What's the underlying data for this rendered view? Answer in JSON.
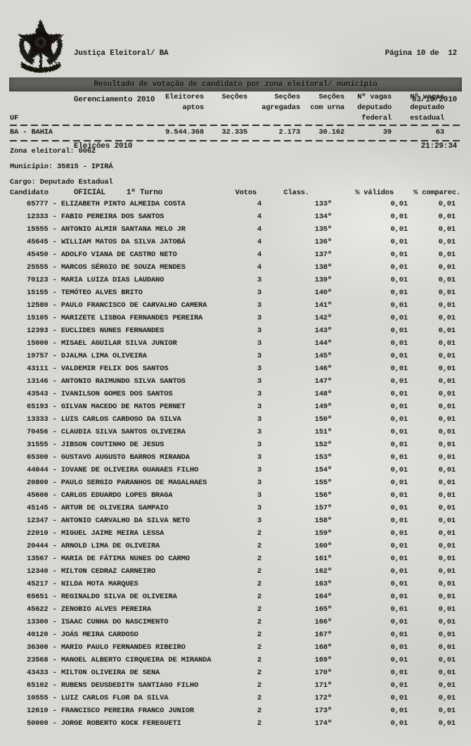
{
  "header": {
    "org": "Justiça Eleitoral/ BA",
    "system": "Gerenciamento 2010",
    "election": "Eleições 2010",
    "doc_type": "OFICIAL",
    "turn": "1º Turno",
    "page": "Página 10 de  12",
    "date": "03/10/2010",
    "time": "21:29:34"
  },
  "icons": {
    "logo": "brazil-coat-of-arms"
  },
  "title_bar": {
    "title": "Resultado de votação de candidato por zona eleitoral/ município"
  },
  "summary": {
    "columns": {
      "uf": "UF",
      "eleitores": "Eleitores\naptos",
      "secoes": "Seções",
      "agregadas": "Seções\nagregadas",
      "com_urna": "Seções\ncom urna",
      "federal": "Nº vagas\ndeputado\nfederal",
      "estadual": "Nº vagas\ndeputado\nestadual"
    },
    "row": {
      "uf": "BA - BAHIA",
      "eleitores_aptos": "9.544.368",
      "secoes": "32.335",
      "secoes_agregadas": "2.173",
      "secoes_com_urna": "30.162",
      "vagas_federal": "39",
      "vagas_estadual": "63"
    }
  },
  "section": {
    "zona_label": "Zona eleitoral:",
    "zona_value": "0062",
    "municipio_label": "Município:",
    "municipio_value": "35815 - IPIRÁ",
    "cargo_label": "Cargo:",
    "cargo_value": "Deputado Estadual"
  },
  "table": {
    "separator": " - ",
    "headers": {
      "candidato": "Candidato",
      "votos": "Votos",
      "class": "Class.",
      "validos": "% válidos",
      "comparec": "% comparec."
    },
    "rows": [
      {
        "num": "65777",
        "name": "ELIZABETH PINTO ALMEIDA COSTA",
        "votes": "4",
        "rank": "133º",
        "valid": "0,01",
        "comp": "0,01"
      },
      {
        "num": "12333",
        "name": "FABIO PEREIRA DOS SANTOS",
        "votes": "4",
        "rank": "134º",
        "valid": "0,01",
        "comp": "0,01"
      },
      {
        "num": "15555",
        "name": "ANTONIO ALMIR SANTANA MELO JR",
        "votes": "4",
        "rank": "135º",
        "valid": "0,01",
        "comp": "0,01"
      },
      {
        "num": "45645",
        "name": "WILLIAM MATOS DA SILVA JATOBÁ",
        "votes": "4",
        "rank": "136º",
        "valid": "0,01",
        "comp": "0,01"
      },
      {
        "num": "45450",
        "name": "ADOLFO VIANA DE CASTRO NETO",
        "votes": "4",
        "rank": "137º",
        "valid": "0,01",
        "comp": "0,01"
      },
      {
        "num": "25555",
        "name": "MARCOS SÉRGIO DE SOUZA MENDES",
        "votes": "4",
        "rank": "138º",
        "valid": "0,01",
        "comp": "0,01"
      },
      {
        "num": "70123",
        "name": "MARIA LUIZA DIAS LAUDANO",
        "votes": "3",
        "rank": "139º",
        "valid": "0,01",
        "comp": "0,01"
      },
      {
        "num": "15155",
        "name": "TEMÓTEO ALVES BRITO",
        "votes": "3",
        "rank": "140º",
        "valid": "0,01",
        "comp": "0,01"
      },
      {
        "num": "12580",
        "name": "PAULO FRANCISCO DE CARVALHO CAMERA",
        "votes": "3",
        "rank": "141º",
        "valid": "0,01",
        "comp": "0,01"
      },
      {
        "num": "15105",
        "name": "MARIZETE LISBOA FERNANDES PEREIRA",
        "votes": "3",
        "rank": "142º",
        "valid": "0,01",
        "comp": "0,01"
      },
      {
        "num": "12393",
        "name": "EUCLIDES NUNES FERNANDES",
        "votes": "3",
        "rank": "143º",
        "valid": "0,01",
        "comp": "0,01"
      },
      {
        "num": "15000",
        "name": "MISAEL AGUILAR SILVA JUNIOR",
        "votes": "3",
        "rank": "144º",
        "valid": "0,01",
        "comp": "0,01"
      },
      {
        "num": "19757",
        "name": "DJALMA LIMA OLIVEIRA",
        "votes": "3",
        "rank": "145º",
        "valid": "0,01",
        "comp": "0,01"
      },
      {
        "num": "43111",
        "name": "VALDEMIR FELIX DOS SANTOS",
        "votes": "3",
        "rank": "146º",
        "valid": "0,01",
        "comp": "0,01"
      },
      {
        "num": "13146",
        "name": "ANTONIO RAIMUNDO SILVA SANTOS",
        "votes": "3",
        "rank": "147º",
        "valid": "0,01",
        "comp": "0,01"
      },
      {
        "num": "43543",
        "name": "IVANILSON GOMES DOS SANTOS",
        "votes": "3",
        "rank": "148º",
        "valid": "0,01",
        "comp": "0,01"
      },
      {
        "num": "65193",
        "name": "GILVAN MACEDO DE MATOS PERNET",
        "votes": "3",
        "rank": "149º",
        "valid": "0,01",
        "comp": "0,01"
      },
      {
        "num": "13333",
        "name": "LUIS CARLOS CARDOSO DA SILVA",
        "votes": "3",
        "rank": "150º",
        "valid": "0,01",
        "comp": "0,01"
      },
      {
        "num": "70456",
        "name": "CLAUDIA SILVA SANTOS OLIVEIRA",
        "votes": "3",
        "rank": "151º",
        "valid": "0,01",
        "comp": "0,01"
      },
      {
        "num": "31555",
        "name": "JIBSON COUTINHO DE JESUS",
        "votes": "3",
        "rank": "152º",
        "valid": "0,01",
        "comp": "0,01"
      },
      {
        "num": "65300",
        "name": "GUSTAVO AUGUSTO BARROS MIRANDA",
        "votes": "3",
        "rank": "153º",
        "valid": "0,01",
        "comp": "0,01"
      },
      {
        "num": "44044",
        "name": "IOVANE DE OLIVEIRA GUANAES FILHO",
        "votes": "3",
        "rank": "154º",
        "valid": "0,01",
        "comp": "0,01"
      },
      {
        "num": "20800",
        "name": "PAULO SERGIO PARANHOS DE MAGALHAES",
        "votes": "3",
        "rank": "155º",
        "valid": "0,01",
        "comp": "0,01"
      },
      {
        "num": "45600",
        "name": "CARLOS EDUARDO LOPES BRAGA",
        "votes": "3",
        "rank": "156º",
        "valid": "0,01",
        "comp": "0,01"
      },
      {
        "num": "45145",
        "name": "ARTUR DE OLIVEIRA SAMPAIO",
        "votes": "3",
        "rank": "157º",
        "valid": "0,01",
        "comp": "0,01"
      },
      {
        "num": "12347",
        "name": "ANTONIO CARVALHO DA SILVA NETO",
        "votes": "3",
        "rank": "158º",
        "valid": "0,01",
        "comp": "0,01"
      },
      {
        "num": "22010",
        "name": "MIGUEL JAIME MEIRA LESSA",
        "votes": "2",
        "rank": "159º",
        "valid": "0,01",
        "comp": "0,01"
      },
      {
        "num": "20444",
        "name": "ARNOLD LIMA DE OLIVEIRA",
        "votes": "2",
        "rank": "160º",
        "valid": "0,01",
        "comp": "0,01"
      },
      {
        "num": "13567",
        "name": "MARIA DE FÁTIMA NUNES DO CARMO",
        "votes": "2",
        "rank": "161º",
        "valid": "0,01",
        "comp": "0,01"
      },
      {
        "num": "12340",
        "name": "MILTON CEDRAZ CARNEIRO",
        "votes": "2",
        "rank": "162º",
        "valid": "0,01",
        "comp": "0,01"
      },
      {
        "num": "45217",
        "name": "NILDA MOTA MARQUES",
        "votes": "2",
        "rank": "163º",
        "valid": "0,01",
        "comp": "0,01"
      },
      {
        "num": "65651",
        "name": "REGINALDO SILVA DE OLIVEIRA",
        "votes": "2",
        "rank": "164º",
        "valid": "0,01",
        "comp": "0,01"
      },
      {
        "num": "45622",
        "name": "ZENOBIO ALVES PEREIRA",
        "votes": "2",
        "rank": "165º",
        "valid": "0,01",
        "comp": "0,01"
      },
      {
        "num": "13300",
        "name": "ISAAC CUNHA DO NASCIMENTO",
        "votes": "2",
        "rank": "166º",
        "valid": "0,01",
        "comp": "0,01"
      },
      {
        "num": "40120",
        "name": "JOÁS MEIRA CARDOSO",
        "votes": "2",
        "rank": "167º",
        "valid": "0,01",
        "comp": "0,01"
      },
      {
        "num": "36300",
        "name": "MARIO PAULO FERNANDES RIBEIRO",
        "votes": "2",
        "rank": "168º",
        "valid": "0,01",
        "comp": "0,01"
      },
      {
        "num": "23568",
        "name": "MANOEL ALBERTO CIRQUEIRA DE MIRANDA",
        "votes": "2",
        "rank": "169º",
        "valid": "0,01",
        "comp": "0,01"
      },
      {
        "num": "43433",
        "name": "MILTON OLIVEIRA DE SENA",
        "votes": "2",
        "rank": "170º",
        "valid": "0,01",
        "comp": "0,01"
      },
      {
        "num": "65102",
        "name": "RUBENS DEUSDEDITH SANTIAGO FILHO",
        "votes": "2",
        "rank": "171º",
        "valid": "0,01",
        "comp": "0,01"
      },
      {
        "num": "10555",
        "name": "LUIZ CARLOS FLOR DA SILVA",
        "votes": "2",
        "rank": "172º",
        "valid": "0,01",
        "comp": "0,01"
      },
      {
        "num": "12610",
        "name": "FRANCISCO PEREIRA FRANCO JUNIOR",
        "votes": "2",
        "rank": "173º",
        "valid": "0,01",
        "comp": "0,01"
      },
      {
        "num": "50000",
        "name": "JORGE ROBERTO KOCK FEREGUETI",
        "votes": "2",
        "rank": "174º",
        "valid": "0,01",
        "comp": "0,01"
      }
    ]
  },
  "colors": {
    "paper": "#d8d7d3",
    "ink": "#1d1c1a",
    "title_bar_bg": "#61605c"
  }
}
